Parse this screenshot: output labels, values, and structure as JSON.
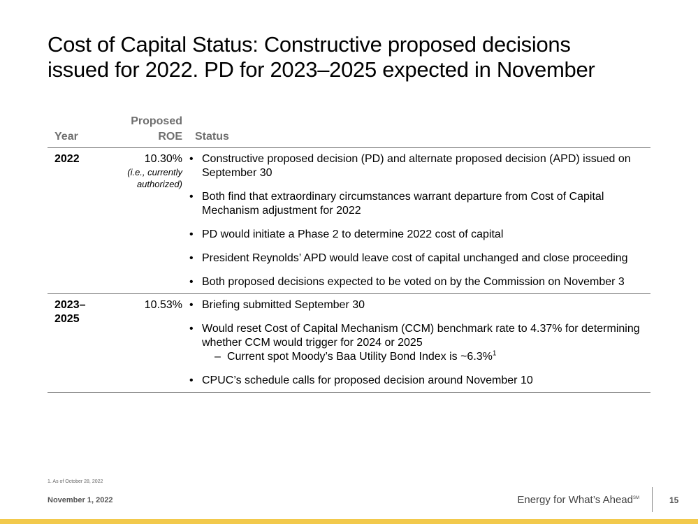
{
  "title": {
    "line1": "Cost of Capital Status: Constructive proposed decisions",
    "line2": "issued for 2022. PD for 2023–2025 expected in November"
  },
  "table": {
    "headers": {
      "year": "Year",
      "roe_line1": "Proposed",
      "roe_line2": "ROE",
      "status": "Status"
    },
    "rows": [
      {
        "year": "2022",
        "roe": "10.30%",
        "roe_note_line1": "(i.e., currently",
        "roe_note_line2": "authorized)",
        "bullets": [
          "Constructive proposed decision (PD) and alternate proposed decision (APD) issued on September 30",
          "Both find that extraordinary circumstances warrant departure from Cost of Capital Mechanism adjustment for 2022",
          "PD would initiate a Phase 2 to determine 2022 cost of capital",
          "President Reynolds’ APD would leave cost of capital unchanged and close proceeding",
          "Both proposed decisions expected to be voted on by the Commission on November 3"
        ]
      },
      {
        "year_line1": "2023–",
        "year_line2": "2025",
        "roe": "10.53%",
        "bullets": [
          "Briefing submitted September 30",
          "Would reset Cost of Capital Mechanism (CCM) benchmark rate to 4.37% for determining whether CCM would trigger for 2024 or 2025",
          "CPUC’s schedule calls for proposed decision around November 10"
        ],
        "sub_bullet": "Current spot Moody’s Baa Utility Bond Index is ~6.3%",
        "sub_bullet_footnote": "1"
      }
    ]
  },
  "footer": {
    "footnote": "1.  As of October 28, 2022",
    "date": "November 1, 2022",
    "tagline": "Energy for What’s Ahead",
    "tagline_mark": "SM",
    "page_number": "15",
    "accent_color": "#f2c94c"
  }
}
